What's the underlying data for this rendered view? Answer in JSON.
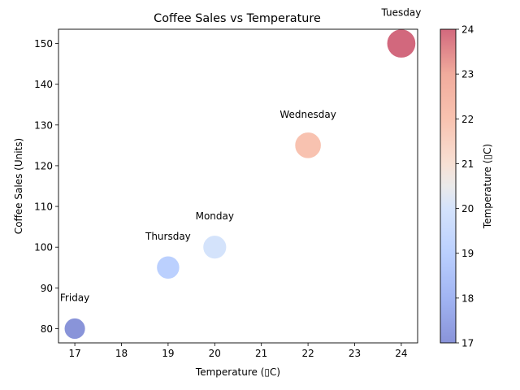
{
  "chart_data": {
    "type": "scatter",
    "title": "Coffee Sales vs Temperature",
    "xlabel": "Temperature (▯C)",
    "ylabel": "Coffee Sales (Units)",
    "xlim": [
      16.65,
      24.35
    ],
    "ylim": [
      76.5,
      153.5
    ],
    "xticks": [
      17,
      18,
      19,
      20,
      21,
      22,
      23,
      24
    ],
    "yticks": [
      80,
      90,
      100,
      110,
      120,
      130,
      140,
      150
    ],
    "grid": false,
    "points": [
      {
        "label": "Monday",
        "x": 20,
        "y": 100
      },
      {
        "label": "Tuesday",
        "x": 24,
        "y": 150
      },
      {
        "label": "Wednesday",
        "x": 22,
        "y": 125
      },
      {
        "label": "Thursday",
        "x": 19,
        "y": 95
      },
      {
        "label": "Friday",
        "x": 17,
        "y": 80
      }
    ],
    "marker_size_encodes": "y",
    "marker_color_encodes": "x",
    "colorbar": {
      "label": "Temperature (▯C)",
      "range": [
        17,
        24
      ],
      "ticks": [
        17,
        18,
        19,
        20,
        21,
        22,
        23,
        24
      ],
      "colormap": "coolwarm",
      "alpha": 0.6
    }
  }
}
